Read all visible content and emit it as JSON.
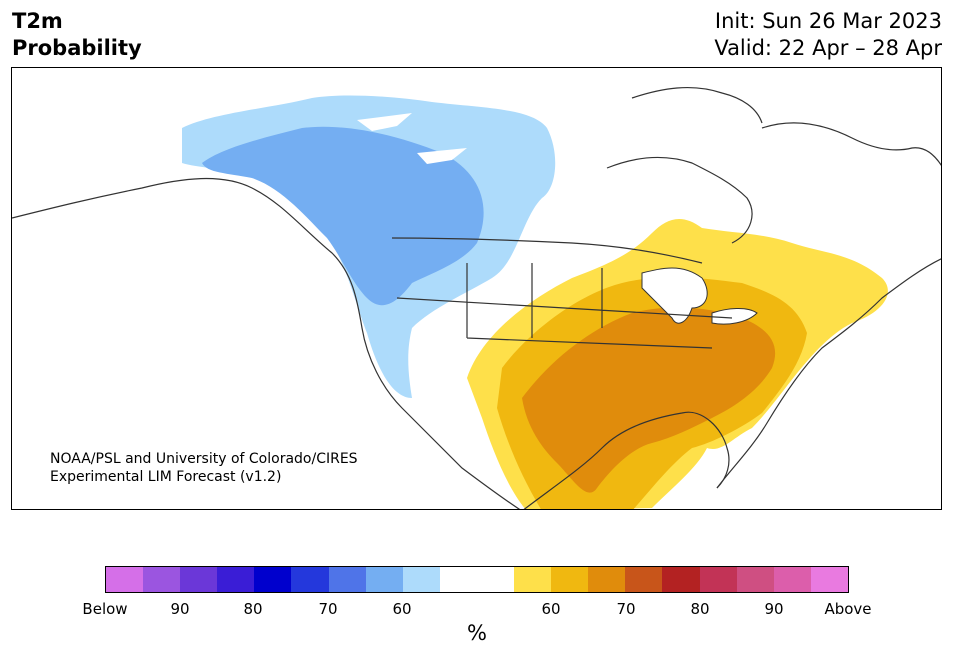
{
  "header": {
    "title_line1": "T2m",
    "title_line2": "Probability",
    "init": "Init: Sun 26 Mar 2023",
    "valid": "Valid: 22 Apr – 28 Apr"
  },
  "map": {
    "credit_line1": "NOAA/PSL and University of Colorado/CIRES",
    "credit_line2": "Experimental LIM Forecast (v1.2)"
  },
  "colorbar": {
    "unit": "%",
    "tick_labels": [
      "Below",
      "90",
      "80",
      "70",
      "60",
      "60",
      "70",
      "80",
      "90",
      "Above"
    ],
    "colors": [
      "#d56fe8",
      "#9b55e0",
      "#6b37d8",
      "#3a1dd6",
      "#0000cd",
      "#2438dc",
      "#4f74e8",
      "#74aef2",
      "#addbfb",
      "#ffffff",
      "#ffffff",
      "#fee04a",
      "#f0b810",
      "#e08c0c",
      "#c8551a",
      "#b32222",
      "#c23356",
      "#cf4f82",
      "#dc5eab",
      "#e97ae0"
    ]
  },
  "colors": {
    "below_60": "#addbfb",
    "below_70": "#74aef2",
    "above_60": "#fee04a",
    "above_70": "#f0b810",
    "above_70b": "#e08c0c",
    "coast": "#333333"
  }
}
